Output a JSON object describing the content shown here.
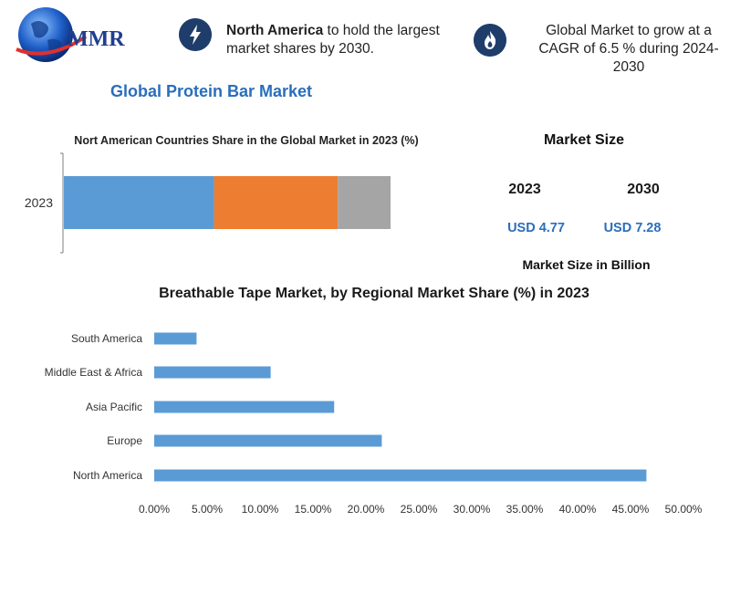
{
  "header": {
    "logo_text": "MMR",
    "info1_bold": "North America",
    "info1_rest": " to hold the largest market shares by 2030.",
    "info2": "Global Market to grow at a CAGR of 6.5 % during 2024-2030",
    "icons": [
      "lightning-icon",
      "flame-icon",
      "globe-icon"
    ]
  },
  "main_title": "Global Protein Bar Market",
  "market_size": {
    "title": "Market Size",
    "years": [
      "2023",
      "2030"
    ],
    "values": [
      "USD 4.77",
      "USD 7.28"
    ],
    "unit_label": "Market Size in Billion"
  },
  "chart_data": [
    {
      "type": "bar",
      "orientation": "horizontal",
      "stacked": true,
      "title": "Nort American Countries Share in the Global Market in 2023 (%)",
      "categories": [
        "2023"
      ],
      "series": [
        {
          "values": [
            57
          ],
          "color": "#5b9bd5"
        },
        {
          "values": [
            47
          ],
          "color": "#ed7d31"
        },
        {
          "values": [
            20
          ],
          "color": "#a5a5a5"
        }
      ],
      "xlim": [
        0,
        124
      ]
    },
    {
      "type": "bar",
      "orientation": "horizontal",
      "title": "Breathable Tape Market, by Regional Market Share (%) in 2023",
      "categories": [
        "South America",
        "Middle East & Africa",
        "Asia Pacific",
        "Europe",
        "North America"
      ],
      "values": [
        4,
        11,
        17,
        21.5,
        46.5
      ],
      "xlim": [
        0,
        50
      ],
      "xticks": [
        "0.00%",
        "5.00%",
        "10.00%",
        "15.00%",
        "20.00%",
        "25.00%",
        "30.00%",
        "35.00%",
        "40.00%",
        "45.00%",
        "50.00%"
      ],
      "color": "#5b9bd5",
      "grid": false
    }
  ]
}
